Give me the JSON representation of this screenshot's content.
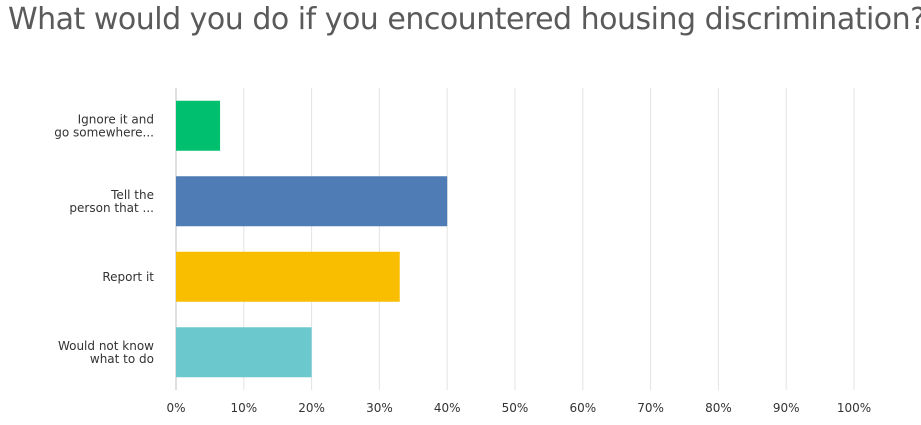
{
  "chart_data": {
    "type": "bar",
    "orientation": "horizontal",
    "title": "What would you do if you encountered housing discrimination?",
    "categories": [
      [
        "Ignore it and",
        "go somewhere..."
      ],
      [
        "Tell the",
        "person that ..."
      ],
      [
        "Report it"
      ],
      [
        "Would not know",
        "what to do"
      ]
    ],
    "values": [
      6.5,
      40,
      33,
      20
    ],
    "colors": [
      "#00bf6f",
      "#507cb6",
      "#f9be00",
      "#6bc8cd"
    ],
    "xlim": [
      0,
      100
    ],
    "xticks": [
      "0%",
      "10%",
      "20%",
      "30%",
      "40%",
      "50%",
      "60%",
      "70%",
      "80%",
      "90%",
      "100%"
    ],
    "grid": true
  }
}
